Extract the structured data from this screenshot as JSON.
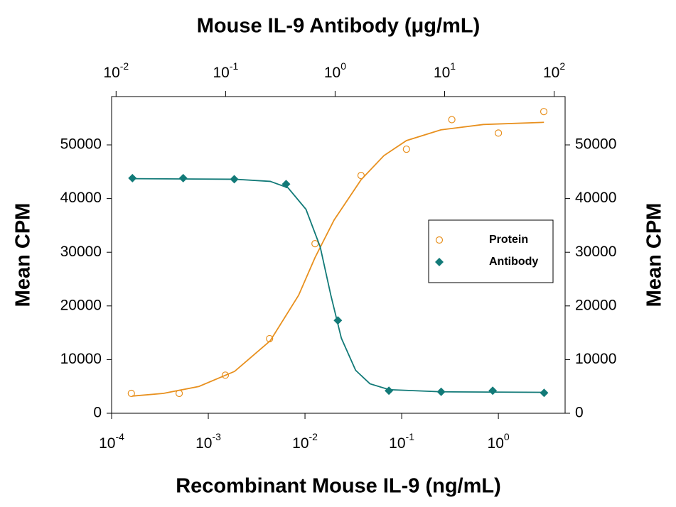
{
  "chart_data": {
    "type": "scatter",
    "x2label": "Mouse IL-9 Antibody (μg/mL)",
    "xlabel": "Recombinant Mouse IL-9 (ng/mL)",
    "ylabel": "Mean CPM",
    "y2label": "Mean CPM",
    "xscale": "log",
    "x2scale": "log",
    "xlim": [
      0.0001,
      4.9
    ],
    "x2lim": [
      0.0091,
      126
    ],
    "ylim": [
      0,
      59000
    ],
    "xticks": [
      {
        "value": 0.0001,
        "label": "10",
        "exponent": "-4"
      },
      {
        "value": 0.001,
        "label": "10",
        "exponent": "-3"
      },
      {
        "value": 0.01,
        "label": "10",
        "exponent": "-2"
      },
      {
        "value": 0.1,
        "label": "10",
        "exponent": "-1"
      },
      {
        "value": 1,
        "label": "10",
        "exponent": "0"
      }
    ],
    "x2ticks": [
      {
        "value": 0.01,
        "label": "10",
        "exponent": "-2"
      },
      {
        "value": 0.1,
        "label": "10",
        "exponent": "-1"
      },
      {
        "value": 1,
        "label": "10",
        "exponent": "0"
      },
      {
        "value": 10,
        "label": "10",
        "exponent": "1"
      },
      {
        "value": 100,
        "label": "10",
        "exponent": "2"
      }
    ],
    "yticks": [
      0,
      10000,
      20000,
      30000,
      40000,
      50000
    ],
    "y2ticks": [
      0,
      10000,
      20000,
      30000,
      40000,
      50000
    ],
    "legend": "center-right",
    "series": [
      {
        "name": "Protein",
        "color": "#e8901e",
        "marker": "circle",
        "xaxis": "x",
        "x": [
          0.00016,
          0.0005,
          0.0015,
          0.0043,
          0.0127,
          0.038,
          0.112,
          0.33,
          1.0,
          2.95
        ],
        "values": [
          3700,
          3700,
          7100,
          13900,
          31600,
          44300,
          49200,
          54700,
          52200,
          56200
        ],
        "fit": {
          "x": [
            0.000163,
            0.000344,
            0.0008,
            0.00187,
            0.00437,
            0.0086,
            0.0127,
            0.02,
            0.038,
            0.0655,
            0.112,
            0.254,
            0.7,
            2.96
          ],
          "values": [
            3200,
            3700,
            5000,
            7800,
            13500,
            22000,
            29000,
            36000,
            43500,
            48000,
            50800,
            52800,
            53800,
            54200
          ]
        }
      },
      {
        "name": "Antibody",
        "color": "#127a78",
        "marker": "diamond",
        "xaxis": "x2",
        "x": [
          0.0141,
          0.041,
          0.12,
          0.357,
          1.06,
          3.1,
          9.3,
          27.5,
          81
        ],
        "values": [
          43800,
          43800,
          43600,
          42700,
          17300,
          4200,
          4000,
          4200,
          3800
        ],
        "fit": {
          "x": [
            0.0141,
            0.121,
            0.256,
            0.372,
            0.542,
            0.731,
            0.914,
            1.14,
            1.54,
            2.08,
            3.12,
            9.29,
            81
          ],
          "values": [
            43700,
            43600,
            43200,
            42000,
            38000,
            31000,
            22000,
            14000,
            8000,
            5500,
            4400,
            4000,
            3900
          ]
        }
      }
    ]
  }
}
